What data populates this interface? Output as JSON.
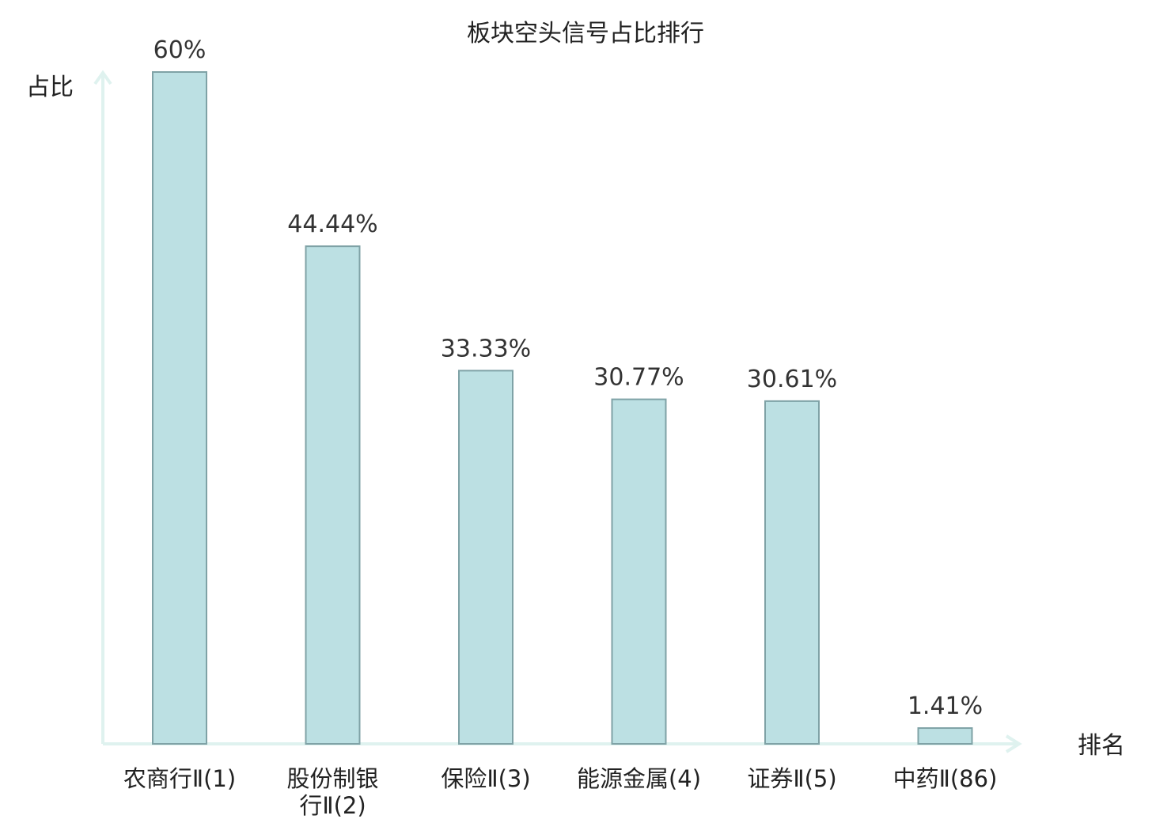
{
  "chart_data": {
    "type": "bar",
    "title": "板块空头信号占比排行",
    "ylabel": "占比",
    "xlabel": "排名",
    "ylim": [
      0,
      60
    ],
    "grid": false,
    "categories": [
      {
        "lines": [
          "农商行Ⅱ(1)"
        ],
        "highlight": false
      },
      {
        "lines": [
          "股份制银",
          "行Ⅱ(2)"
        ],
        "highlight": false
      },
      {
        "lines": [
          "保险Ⅱ(3)"
        ],
        "highlight": false
      },
      {
        "lines": [
          "能源金属(4)"
        ],
        "highlight": false
      },
      {
        "lines": [
          "证券Ⅱ(5)"
        ],
        "highlight": false
      },
      {
        "lines": [
          "中药Ⅱ(86)"
        ],
        "highlight": true
      }
    ],
    "values": [
      60,
      44.44,
      33.33,
      30.77,
      30.61,
      1.41
    ],
    "value_labels": [
      "60%",
      "44.44%",
      "33.33%",
      "30.77%",
      "30.61%",
      "1.41%"
    ],
    "colors": {
      "bar_fill": "#bce0e3",
      "bar_stroke": "#7fa2a6",
      "axis": "#dff2ef",
      "highlight_text": "#e02020",
      "text": "#222222"
    }
  }
}
